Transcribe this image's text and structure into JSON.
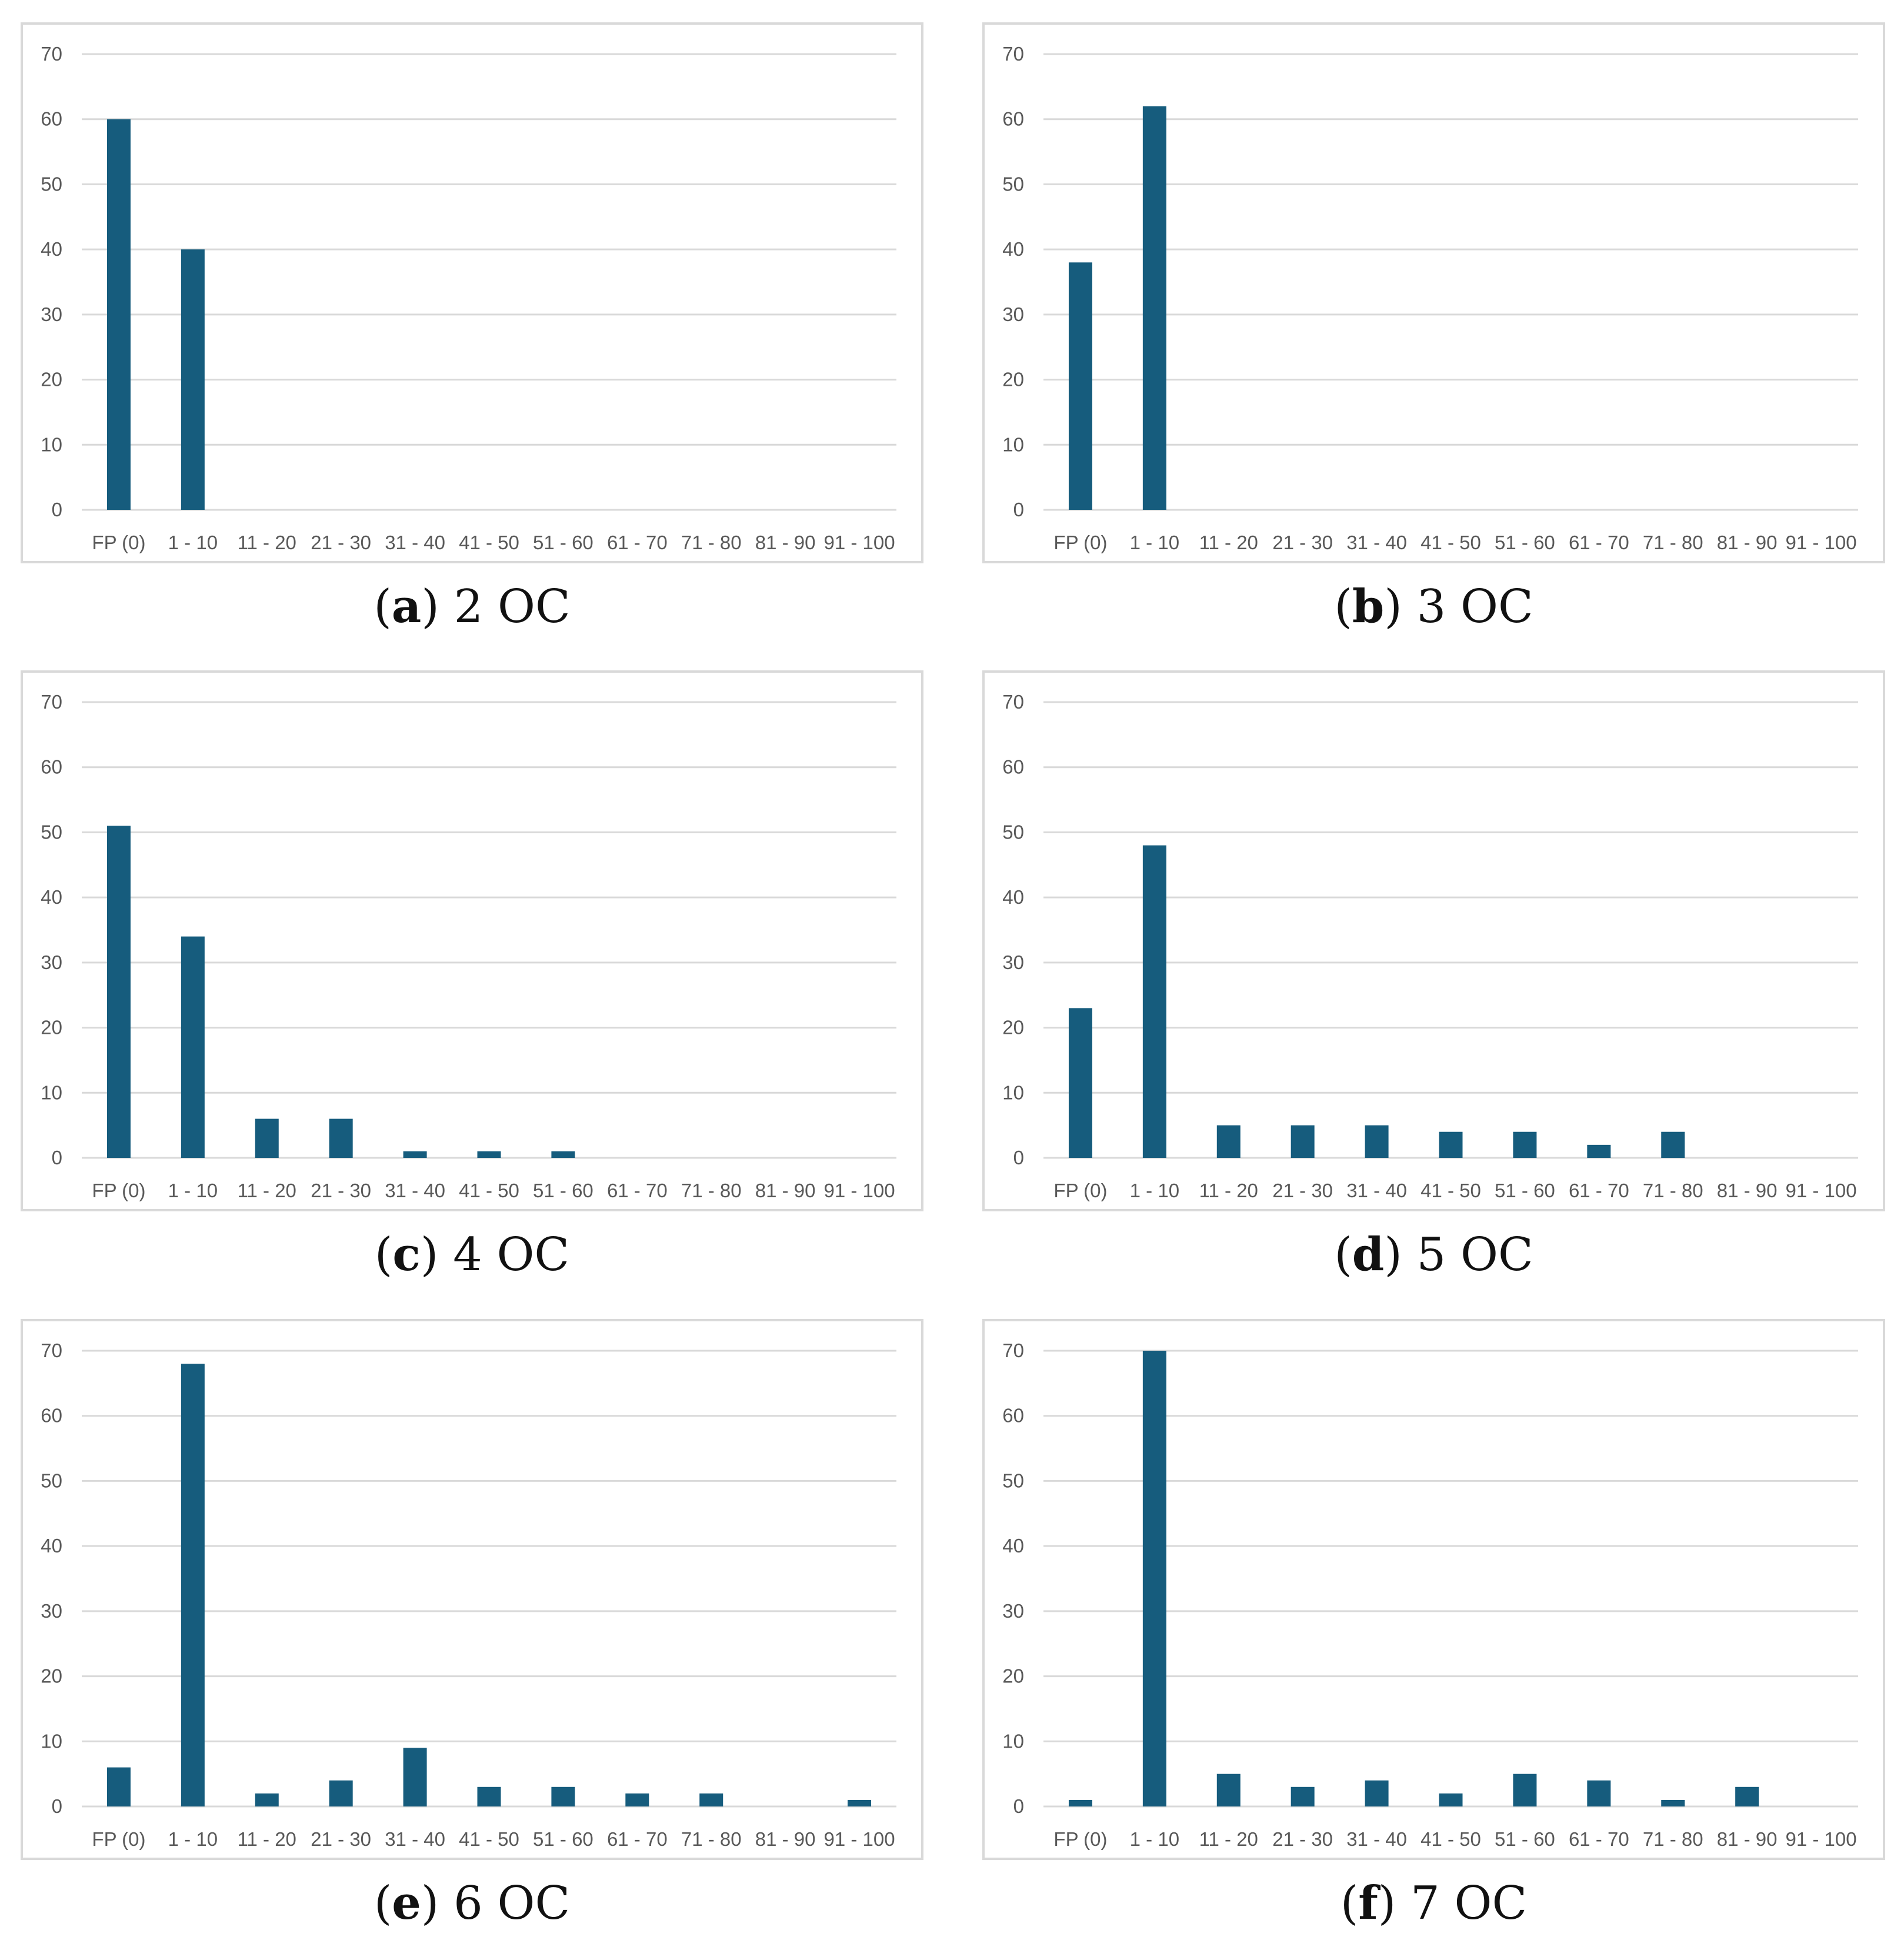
{
  "chart_data": [
    {
      "type": "bar",
      "panel_letter": "a",
      "panel_title": "2 OC",
      "categories": [
        "FP (0)",
        "1 - 10",
        "11 - 20",
        "21 - 30",
        "31 - 40",
        "41 - 50",
        "51 - 60",
        "61 - 70",
        "71 - 80",
        "81 - 90",
        "91 - 100"
      ],
      "values": [
        60,
        40,
        0,
        0,
        0,
        0,
        0,
        0,
        0,
        0,
        0
      ],
      "yticks": [
        0,
        10,
        20,
        30,
        40,
        50,
        60,
        70
      ],
      "ylim": [
        0,
        70
      ],
      "color": "#165c7d"
    },
    {
      "type": "bar",
      "panel_letter": "b",
      "panel_title": "3 OC",
      "categories": [
        "FP (0)",
        "1 - 10",
        "11 - 20",
        "21 - 30",
        "31 - 40",
        "41 - 50",
        "51 - 60",
        "61 - 70",
        "71 - 80",
        "81 - 90",
        "91 - 100"
      ],
      "values": [
        38,
        62,
        0,
        0,
        0,
        0,
        0,
        0,
        0,
        0,
        0
      ],
      "yticks": [
        0,
        10,
        20,
        30,
        40,
        50,
        60,
        70
      ],
      "ylim": [
        0,
        70
      ],
      "color": "#165c7d"
    },
    {
      "type": "bar",
      "panel_letter": "c",
      "panel_title": "4 OC",
      "categories": [
        "FP (0)",
        "1 - 10",
        "11 - 20",
        "21 - 30",
        "31 - 40",
        "41 - 50",
        "51 - 60",
        "61 - 70",
        "71 - 80",
        "81 - 90",
        "91 - 100"
      ],
      "values": [
        51,
        34,
        6,
        6,
        1,
        1,
        1,
        0,
        0,
        0,
        0
      ],
      "yticks": [
        0,
        10,
        20,
        30,
        40,
        50,
        60,
        70
      ],
      "ylim": [
        0,
        70
      ],
      "color": "#165c7d"
    },
    {
      "type": "bar",
      "panel_letter": "d",
      "panel_title": "5 OC",
      "categories": [
        "FP (0)",
        "1 - 10",
        "11 - 20",
        "21 - 30",
        "31 - 40",
        "41 - 50",
        "51 - 60",
        "61 - 70",
        "71 - 80",
        "81 - 90",
        "91 - 100"
      ],
      "values": [
        23,
        48,
        5,
        5,
        5,
        4,
        4,
        2,
        4,
        0,
        0
      ],
      "yticks": [
        0,
        10,
        20,
        30,
        40,
        50,
        60,
        70
      ],
      "ylim": [
        0,
        70
      ],
      "color": "#165c7d"
    },
    {
      "type": "bar",
      "panel_letter": "e",
      "panel_title": "6 OC",
      "categories": [
        "FP (0)",
        "1 - 10",
        "11 - 20",
        "21 - 30",
        "31 - 40",
        "41 - 50",
        "51 - 60",
        "61 - 70",
        "71 - 80",
        "81 - 90",
        "91 - 100"
      ],
      "values": [
        6,
        68,
        2,
        4,
        9,
        3,
        3,
        2,
        2,
        0,
        1
      ],
      "yticks": [
        0,
        10,
        20,
        30,
        40,
        50,
        60,
        70
      ],
      "ylim": [
        0,
        70
      ],
      "color": "#165c7d"
    },
    {
      "type": "bar",
      "panel_letter": "f",
      "panel_title": "7 OC",
      "categories": [
        "FP (0)",
        "1 - 10",
        "11 - 20",
        "21 - 30",
        "31 - 40",
        "41 - 50",
        "51 - 60",
        "61 - 70",
        "71 - 80",
        "81 - 90",
        "91 - 100"
      ],
      "values": [
        1,
        70,
        5,
        3,
        4,
        2,
        5,
        4,
        1,
        3,
        0
      ],
      "yticks": [
        0,
        10,
        20,
        30,
        40,
        50,
        60,
        70
      ],
      "ylim": [
        0,
        70
      ],
      "color": "#165c7d"
    }
  ]
}
